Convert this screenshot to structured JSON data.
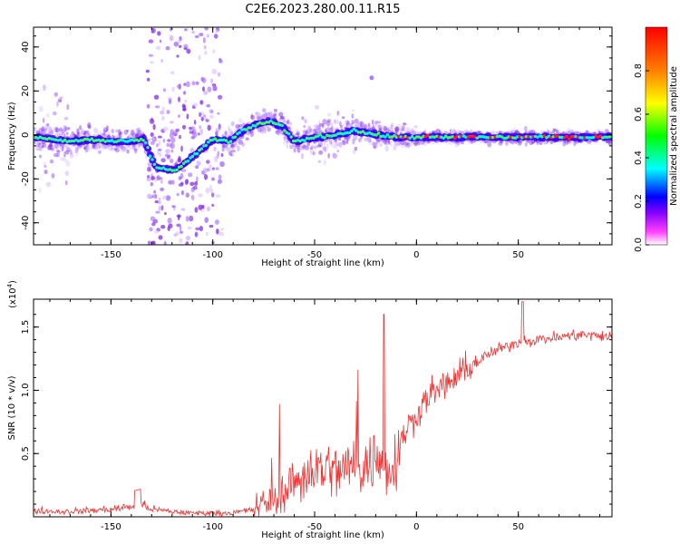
{
  "title": "C2E6.2023.280.00.11.R15",
  "colors": {
    "snr_line": "#f03232",
    "spectrum_scatter": "#8a2be2",
    "spectrum_core": "#00ff7f",
    "colorbar_stops": [
      "#ffffff",
      "#ff00ff",
      "#0000ff",
      "#00ffff",
      "#00ff00",
      "#ffff00",
      "#ff8000",
      "#ff0000"
    ]
  },
  "chart_data": [
    {
      "type": "heatmap",
      "xlabel": "Height of straight line (km)",
      "ylabel": "Frequency (Hz)",
      "xlim": [
        -188,
        96
      ],
      "ylim": [
        -50,
        49
      ],
      "xticks": [
        -150,
        -100,
        -50,
        0,
        50
      ],
      "yticks": [
        -40,
        -20,
        0,
        20,
        40
      ],
      "xtick_labels": [
        "-150",
        "-100",
        "-50",
        "0",
        "50"
      ],
      "ytick_labels": [
        "-40",
        "-20",
        "0",
        "20",
        "40"
      ],
      "track": {
        "description_points_x": [
          -188,
          -170,
          -160,
          -150,
          -140,
          -134,
          -128,
          -118,
          -110,
          -100,
          -92,
          -85,
          -78,
          -72,
          -66,
          -60,
          -50,
          -40,
          -30,
          -20,
          -10,
          0,
          20,
          40,
          60,
          80,
          96
        ],
        "description_points_y": [
          -1,
          -3,
          -2,
          -3,
          -3,
          -2,
          -15,
          -16,
          -10,
          -2,
          -3,
          2,
          5,
          6,
          4,
          -3,
          -1,
          0,
          2,
          0,
          -1,
          -1,
          -1,
          -1,
          -1,
          -1,
          -1
        ]
      },
      "colorbar": {
        "label": "Normalized spectral amplitude",
        "range": [
          0.0,
          1.0
        ],
        "ticks": [
          0.0,
          0.2,
          0.4,
          0.6,
          0.8
        ],
        "tick_labels": [
          "0.0",
          "0.2",
          "0.4",
          "0.6",
          "0.8"
        ]
      }
    },
    {
      "type": "line",
      "xlabel": "Height of straight line (km)",
      "ylabel": "SNR (10 * v/v)",
      "yunit": "(x10",
      "yunit_exp": "4",
      "yunit_close": ")",
      "xlim": [
        -188,
        96
      ],
      "ylim": [
        0,
        1.72
      ],
      "xticks": [
        -150,
        -100,
        -50,
        0,
        50
      ],
      "yticks": [
        0.5,
        1.0,
        1.5
      ],
      "xtick_labels": [
        "-150",
        "-100",
        "-50",
        "0",
        "50"
      ],
      "ytick_labels": [
        "0.5",
        "1.0",
        "1.5"
      ],
      "series": [
        {
          "x": [
            -188,
            -175,
            -160,
            -150,
            -140,
            -135,
            -130,
            -120,
            -110,
            -100,
            -90,
            -80,
            -75,
            -70,
            -65,
            -60,
            -55,
            -50,
            -45,
            -40,
            -35,
            -30,
            -25,
            -20,
            -15,
            -10,
            -5,
            0,
            5,
            10,
            15,
            20,
            25,
            30,
            35,
            40,
            50,
            60,
            70,
            80,
            90,
            96
          ],
          "y": [
            0.05,
            0.04,
            0.05,
            0.06,
            0.08,
            0.1,
            0.06,
            0.04,
            0.03,
            0.03,
            0.03,
            0.06,
            0.1,
            0.15,
            0.2,
            0.28,
            0.32,
            0.38,
            0.4,
            0.35,
            0.38,
            0.42,
            0.4,
            0.45,
            0.4,
            0.45,
            0.7,
            0.8,
            0.95,
            1.0,
            1.05,
            1.1,
            1.18,
            1.22,
            1.28,
            1.32,
            1.38,
            1.4,
            1.42,
            1.44,
            1.43,
            1.42
          ]
        }
      ]
    }
  ]
}
